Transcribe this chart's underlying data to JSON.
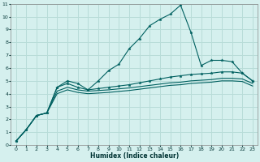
{
  "xlabel": "Humidex (Indice chaleur)",
  "bg_color": "#d5f0ee",
  "grid_color": "#b8dcd8",
  "line_color": "#006060",
  "xlim": [
    -0.5,
    23.5
  ],
  "ylim": [
    0,
    11
  ],
  "x_ticks": [
    0,
    1,
    2,
    3,
    4,
    5,
    6,
    7,
    8,
    9,
    10,
    11,
    12,
    13,
    14,
    15,
    16,
    17,
    18,
    19,
    20,
    21,
    22,
    23
  ],
  "y_ticks": [
    0,
    1,
    2,
    3,
    4,
    5,
    6,
    7,
    8,
    9,
    10,
    11
  ],
  "series": [
    {
      "x": [
        0,
        1,
        2,
        3,
        4,
        5,
        6,
        7,
        8,
        9,
        10,
        11,
        12,
        13,
        14,
        15,
        16,
        17,
        18,
        19,
        20,
        21,
        22,
        23
      ],
      "y": [
        0.3,
        1.2,
        2.3,
        2.5,
        4.5,
        5.0,
        4.8,
        4.3,
        5.0,
        5.8,
        6.3,
        7.5,
        8.3,
        9.3,
        9.8,
        10.2,
        10.9,
        8.8,
        6.2,
        6.6,
        6.6,
        6.5,
        5.6,
        5.0
      ],
      "marker": true
    },
    {
      "x": [
        0,
        1,
        2,
        3,
        4,
        5,
        6,
        7,
        8,
        9,
        10,
        11,
        12,
        13,
        14,
        15,
        16,
        17,
        18,
        19,
        20,
        21,
        22,
        23
      ],
      "y": [
        0.3,
        1.2,
        2.3,
        2.5,
        4.5,
        4.8,
        4.5,
        4.3,
        4.4,
        4.5,
        4.6,
        4.7,
        4.85,
        5.0,
        5.15,
        5.3,
        5.4,
        5.5,
        5.55,
        5.6,
        5.7,
        5.7,
        5.6,
        5.0
      ],
      "marker": true
    },
    {
      "x": [
        0,
        1,
        2,
        3,
        4,
        5,
        6,
        7,
        8,
        9,
        10,
        11,
        12,
        13,
        14,
        15,
        16,
        17,
        18,
        19,
        20,
        21,
        22,
        23
      ],
      "y": [
        0.3,
        1.2,
        2.3,
        2.5,
        4.2,
        4.5,
        4.3,
        4.2,
        4.25,
        4.3,
        4.38,
        4.45,
        4.55,
        4.65,
        4.75,
        4.85,
        4.9,
        5.0,
        5.05,
        5.1,
        5.2,
        5.2,
        5.15,
        4.8
      ],
      "marker": false
    },
    {
      "x": [
        0,
        1,
        2,
        3,
        4,
        5,
        6,
        7,
        8,
        9,
        10,
        11,
        12,
        13,
        14,
        15,
        16,
        17,
        18,
        19,
        20,
        21,
        22,
        23
      ],
      "y": [
        0.3,
        1.2,
        2.3,
        2.5,
        4.0,
        4.3,
        4.1,
        4.0,
        4.05,
        4.1,
        4.18,
        4.25,
        4.35,
        4.45,
        4.55,
        4.65,
        4.7,
        4.8,
        4.85,
        4.9,
        5.0,
        5.0,
        4.95,
        4.6
      ],
      "marker": false
    }
  ]
}
